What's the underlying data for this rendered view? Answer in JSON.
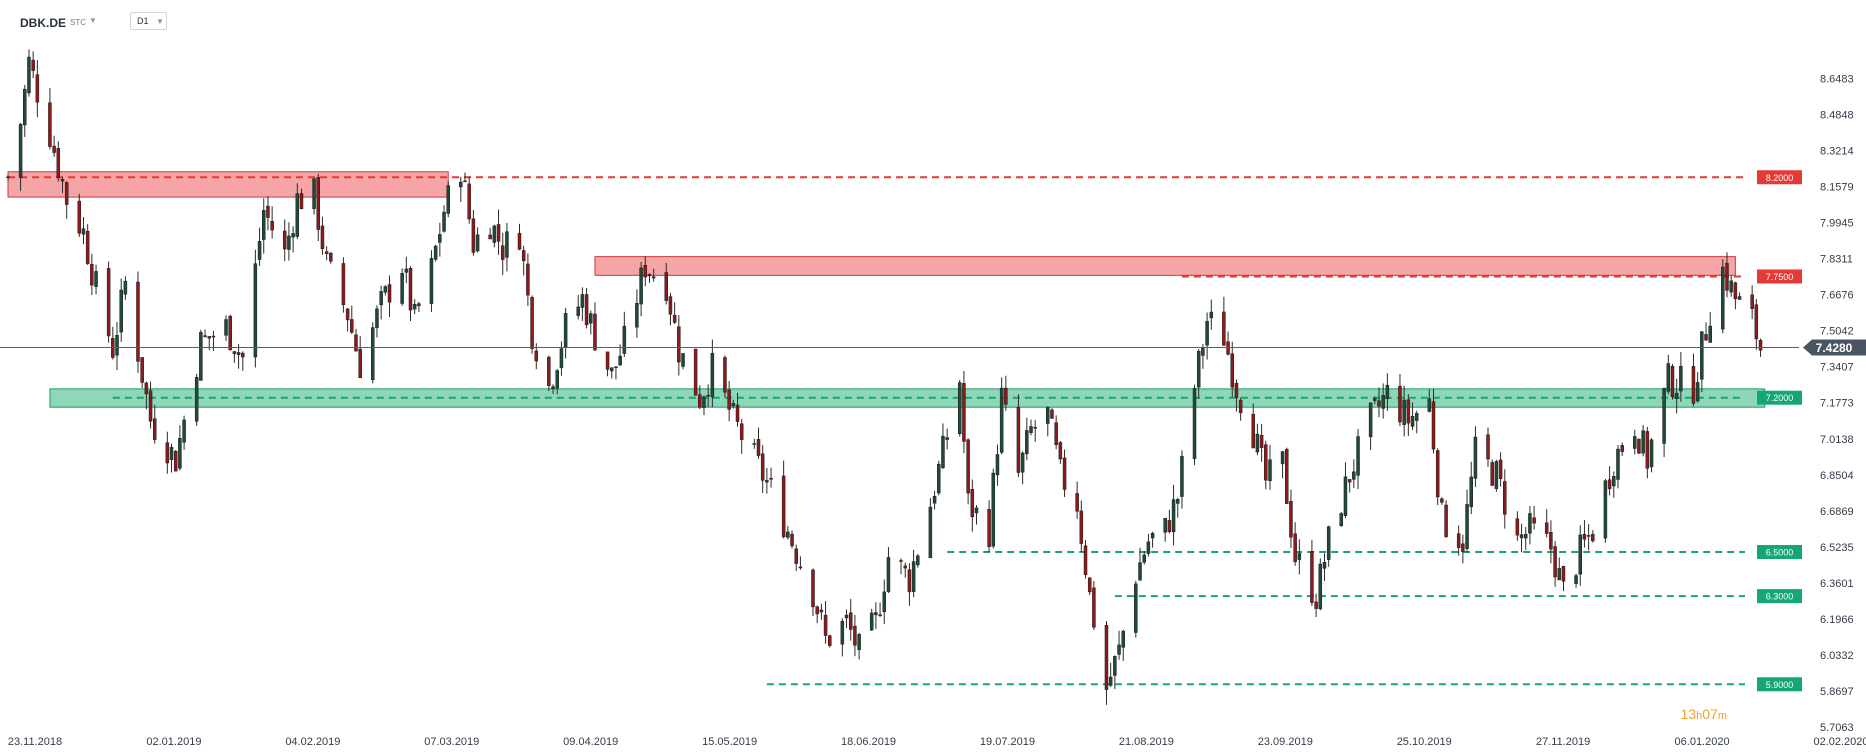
{
  "header": {
    "symbol": "DBK.DE",
    "market": "STC",
    "timeframe": "D1"
  },
  "countdown": {
    "hours": "13",
    "h": "h",
    "minutes": "07",
    "m": "m"
  },
  "chart_data": {
    "type": "candlestick",
    "symbol": "DBK.DE",
    "timeframe": "D1",
    "ylim": [
      5.7063,
      8.75
    ],
    "y_ticks": [
      "8.6483",
      "8.4848",
      "8.3214",
      "8.1579",
      "7.9945",
      "7.8311",
      "7.6676",
      "7.5042",
      "7.3407",
      "7.1773",
      "7.0138",
      "6.8504",
      "6.6869",
      "6.5235",
      "6.3601",
      "6.1966",
      "6.0332",
      "5.8697",
      "5.7063"
    ],
    "x_ticks": [
      "23.11.2018",
      "02.01.2019",
      "04.02.2019",
      "07.03.2019",
      "09.04.2019",
      "15.05.2019",
      "18.06.2019",
      "19.07.2019",
      "21.08.2019",
      "23.09.2019",
      "25.10.2019",
      "27.11.2019",
      "06.01.2020",
      "02.02.2020"
    ],
    "current_price": "7.4280",
    "colors": {
      "up": "#1f4a3a",
      "down": "#8b1a1a",
      "resistance": "#e53935",
      "support": "#14a676",
      "axis_text": "#333c48",
      "countdown": "#f0a030",
      "price_tag": "#4a5562"
    },
    "levels": [
      {
        "price": 8.2,
        "label": "8.2000",
        "kind": "resistance",
        "from_date": "23.11.2018"
      },
      {
        "price": 7.75,
        "label": "7.7500",
        "kind": "resistance",
        "from_date": "30.08.2019"
      },
      {
        "price": 7.2,
        "label": "7.2000",
        "kind": "support",
        "from_date": "18.12.2018"
      },
      {
        "price": 6.5,
        "label": "6.5000",
        "kind": "support",
        "from_date": "05.07.2019"
      },
      {
        "price": 6.3,
        "label": "6.3000",
        "kind": "support",
        "from_date": "14.08.2019"
      },
      {
        "price": 5.9,
        "label": "5.9000",
        "kind": "support",
        "from_date": "23.05.2019"
      }
    ],
    "zones": [
      {
        "kind": "resistance",
        "high": 8.225,
        "low": 8.11,
        "from_date": "23.11.2018",
        "to_date": "08.03.2019"
      },
      {
        "kind": "resistance",
        "high": 7.84,
        "low": 7.755,
        "from_date": "12.04.2019",
        "to_date": "09.01.2020"
      },
      {
        "kind": "support",
        "high": 7.24,
        "low": 7.157,
        "from_date": "03.12.2018",
        "to_date": "16.01.2020"
      }
    ],
    "series_anchors": [
      [
        "23.11.2018",
        8.2
      ],
      [
        "26.11.2018",
        8.45
      ],
      [
        "28.11.2018",
        8.72
      ],
      [
        "03.12.2018",
        8.4
      ],
      [
        "07.12.2018",
        8.1
      ],
      [
        "11.12.2018",
        7.95
      ],
      [
        "14.12.2018",
        7.7
      ],
      [
        "18.12.2018",
        7.42
      ],
      [
        "21.12.2018",
        7.72
      ],
      [
        "27.12.2018",
        7.1
      ],
      [
        "02.01.2019",
        6.92
      ],
      [
        "04.01.2019",
        7.1
      ],
      [
        "08.01.2019",
        7.45
      ],
      [
        "14.01.2019",
        7.52
      ],
      [
        "18.01.2019",
        7.38
      ],
      [
        "23.01.2019",
        8.05
      ],
      [
        "28.01.2019",
        7.85
      ],
      [
        "31.01.2019",
        8.1
      ],
      [
        "04.02.2019",
        8.12
      ],
      [
        "07.02.2019",
        7.8
      ],
      [
        "12.02.2019",
        7.58
      ],
      [
        "15.02.2019",
        7.35
      ],
      [
        "20.02.2019",
        7.62
      ],
      [
        "25.02.2019",
        7.8
      ],
      [
        "28.02.2019",
        7.55
      ],
      [
        "04.03.2019",
        7.78
      ],
      [
        "07.03.2019",
        8.05
      ],
      [
        "11.03.2019",
        8.25
      ],
      [
        "14.03.2019",
        7.9
      ],
      [
        "18.03.2019",
        8.0
      ],
      [
        "21.03.2019",
        7.88
      ],
      [
        "25.03.2019",
        7.95
      ],
      [
        "28.03.2019",
        7.5
      ],
      [
        "01.04.2019",
        7.25
      ],
      [
        "05.04.2019",
        7.52
      ],
      [
        "09.04.2019",
        7.65
      ],
      [
        "12.04.2019",
        7.48
      ],
      [
        "16.04.2019",
        7.3
      ],
      [
        "19.04.2019",
        7.45
      ],
      [
        "24.04.2019",
        7.8
      ],
      [
        "29.04.2019",
        7.72
      ],
      [
        "02.05.2019",
        7.42
      ],
      [
        "07.05.2019",
        7.2
      ],
      [
        "10.05.2019",
        7.33
      ],
      [
        "15.05.2019",
        7.1
      ],
      [
        "20.05.2019",
        6.92
      ],
      [
        "24.05.2019",
        6.78
      ],
      [
        "29.05.2019",
        6.55
      ],
      [
        "03.06.2019",
        6.32
      ],
      [
        "06.06.2019",
        6.1
      ],
      [
        "11.06.2019",
        6.18
      ],
      [
        "14.06.2019",
        6.05
      ],
      [
        "18.06.2019",
        6.18
      ],
      [
        "21.06.2019",
        6.48
      ],
      [
        "26.06.2019",
        6.38
      ],
      [
        "01.07.2019",
        6.72
      ],
      [
        "04.07.2019",
        6.95
      ],
      [
        "08.07.2019",
        7.28
      ],
      [
        "10.07.2019",
        6.72
      ],
      [
        "15.07.2019",
        6.6
      ],
      [
        "18.07.2019",
        7.2
      ],
      [
        "22.07.2019",
        6.85
      ],
      [
        "25.07.2019",
        7.05
      ],
      [
        "29.07.2019",
        7.12
      ],
      [
        "01.08.2019",
        6.85
      ],
      [
        "05.08.2019",
        6.72
      ],
      [
        "08.08.2019",
        6.3
      ],
      [
        "12.08.2019",
        5.88
      ],
      [
        "15.08.2019",
        6.05
      ],
      [
        "19.08.2019",
        6.4
      ],
      [
        "22.08.2019",
        6.55
      ],
      [
        "26.08.2019",
        6.6
      ],
      [
        "29.08.2019",
        6.75
      ],
      [
        "02.09.2019",
        7.25
      ],
      [
        "05.09.2019",
        7.55
      ],
      [
        "09.09.2019",
        7.48
      ],
      [
        "12.09.2019",
        7.25
      ],
      [
        "16.09.2019",
        7.05
      ],
      [
        "19.09.2019",
        6.82
      ],
      [
        "23.09.2019",
        6.9
      ],
      [
        "26.09.2019",
        6.48
      ],
      [
        "01.10.2019",
        6.3
      ],
      [
        "04.10.2019",
        6.55
      ],
      [
        "09.10.2019",
        6.85
      ],
      [
        "14.10.2019",
        7.1
      ],
      [
        "18.10.2019",
        7.22
      ],
      [
        "23.10.2019",
        7.1
      ],
      [
        "28.10.2019",
        7.18
      ],
      [
        "31.10.2019",
        6.65
      ],
      [
        "05.11.2019",
        6.55
      ],
      [
        "08.11.2019",
        6.95
      ],
      [
        "13.11.2019",
        6.85
      ],
      [
        "18.11.2019",
        6.55
      ],
      [
        "21.11.2019",
        6.6
      ],
      [
        "26.11.2019",
        6.52
      ],
      [
        "29.11.2019",
        6.32
      ],
      [
        "03.12.2019",
        6.5
      ],
      [
        "06.12.2019",
        6.6
      ],
      [
        "11.12.2019",
        6.92
      ],
      [
        "16.12.2019",
        7.08
      ],
      [
        "19.12.2019",
        6.92
      ],
      [
        "24.12.2019",
        7.28
      ],
      [
        "30.12.2019",
        7.25
      ],
      [
        "03.01.2020",
        7.6
      ],
      [
        "06.01.2020",
        7.78
      ],
      [
        "09.01.2020",
        7.65
      ],
      [
        "13.01.2020",
        7.55
      ],
      [
        "15.01.2020",
        7.428
      ]
    ]
  }
}
